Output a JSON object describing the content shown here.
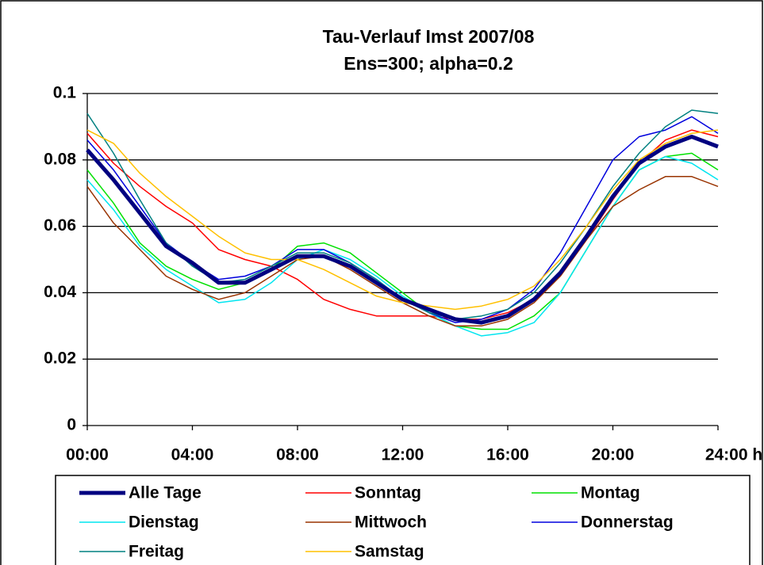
{
  "chart_data": {
    "type": "line",
    "title": "Tau-Verlauf Imst 2007/08",
    "subtitle": "Ens=300; alpha=0.2",
    "x": [
      0,
      1,
      2,
      3,
      4,
      5,
      6,
      7,
      8,
      9,
      10,
      11,
      12,
      13,
      14,
      15,
      16,
      17,
      18,
      19,
      20,
      21,
      22,
      23,
      24
    ],
    "xlim": [
      0,
      24
    ],
    "xticks": [
      {
        "value": 0,
        "label": "00:00"
      },
      {
        "value": 4,
        "label": "04:00"
      },
      {
        "value": 8,
        "label": "08:00"
      },
      {
        "value": 12,
        "label": "12:00"
      },
      {
        "value": 16,
        "label": "16:00"
      },
      {
        "value": 20,
        "label": "20:00"
      },
      {
        "value": 24,
        "label": "24:00 h"
      }
    ],
    "ylim": [
      0,
      0.1
    ],
    "yticks": [
      0,
      0.02,
      0.04,
      0.06,
      0.08,
      0.1
    ],
    "grid": true,
    "legend": "bottom",
    "series": [
      {
        "name": "Alle Tage",
        "color": "#000080",
        "linewidth": 5,
        "values": [
          0.083,
          0.074,
          0.064,
          0.054,
          0.049,
          0.043,
          0.043,
          0.047,
          0.051,
          0.051,
          0.048,
          0.043,
          0.038,
          0.035,
          0.032,
          0.031,
          0.033,
          0.038,
          0.046,
          0.057,
          0.069,
          0.079,
          0.084,
          0.087,
          0.084
        ]
      },
      {
        "name": "Sonntag",
        "color": "#ff0000",
        "linewidth": 1.5,
        "values": [
          0.088,
          0.079,
          0.072,
          0.066,
          0.061,
          0.053,
          0.05,
          0.048,
          0.044,
          0.038,
          0.035,
          0.033,
          0.033,
          0.033,
          0.032,
          0.032,
          0.034,
          0.038,
          0.045,
          0.056,
          0.068,
          0.079,
          0.086,
          0.089,
          0.087
        ]
      },
      {
        "name": "Montag",
        "color": "#00e000",
        "linewidth": 1.5,
        "values": [
          0.077,
          0.067,
          0.055,
          0.048,
          0.044,
          0.041,
          0.043,
          0.047,
          0.054,
          0.055,
          0.052,
          0.046,
          0.04,
          0.034,
          0.03,
          0.029,
          0.029,
          0.033,
          0.04,
          0.053,
          0.066,
          0.077,
          0.081,
          0.082,
          0.077
        ]
      },
      {
        "name": "Dienstag",
        "color": "#00e5f0",
        "linewidth": 1.5,
        "values": [
          0.074,
          0.065,
          0.054,
          0.047,
          0.042,
          0.037,
          0.038,
          0.043,
          0.05,
          0.053,
          0.05,
          0.045,
          0.039,
          0.034,
          0.03,
          0.027,
          0.028,
          0.031,
          0.04,
          0.053,
          0.066,
          0.077,
          0.081,
          0.079,
          0.074
        ]
      },
      {
        "name": "Mittwoch",
        "color": "#993300",
        "linewidth": 1.5,
        "values": [
          0.072,
          0.061,
          0.053,
          0.045,
          0.041,
          0.038,
          0.04,
          0.045,
          0.05,
          0.051,
          0.047,
          0.042,
          0.037,
          0.033,
          0.03,
          0.03,
          0.032,
          0.037,
          0.045,
          0.056,
          0.066,
          0.071,
          0.075,
          0.075,
          0.072
        ]
      },
      {
        "name": "Donnerstag",
        "color": "#0000dd",
        "linewidth": 1.5,
        "values": [
          0.086,
          0.077,
          0.066,
          0.055,
          0.049,
          0.044,
          0.045,
          0.048,
          0.053,
          0.053,
          0.049,
          0.044,
          0.038,
          0.034,
          0.031,
          0.032,
          0.035,
          0.041,
          0.052,
          0.066,
          0.08,
          0.087,
          0.089,
          0.093,
          0.088
        ]
      },
      {
        "name": "Freitag",
        "color": "#008080",
        "linewidth": 1.5,
        "values": [
          0.094,
          0.082,
          0.068,
          0.055,
          0.048,
          0.043,
          0.044,
          0.048,
          0.052,
          0.052,
          0.049,
          0.044,
          0.038,
          0.034,
          0.032,
          0.033,
          0.035,
          0.04,
          0.049,
          0.06,
          0.072,
          0.082,
          0.09,
          0.095,
          0.094
        ]
      },
      {
        "name": "Samstag",
        "color": "#ffc000",
        "linewidth": 1.5,
        "values": [
          0.089,
          0.085,
          0.076,
          0.069,
          0.063,
          0.057,
          0.052,
          0.05,
          0.05,
          0.047,
          0.043,
          0.039,
          0.037,
          0.036,
          0.035,
          0.036,
          0.038,
          0.042,
          0.05,
          0.06,
          0.071,
          0.08,
          0.085,
          0.088,
          0.089
        ]
      }
    ]
  }
}
